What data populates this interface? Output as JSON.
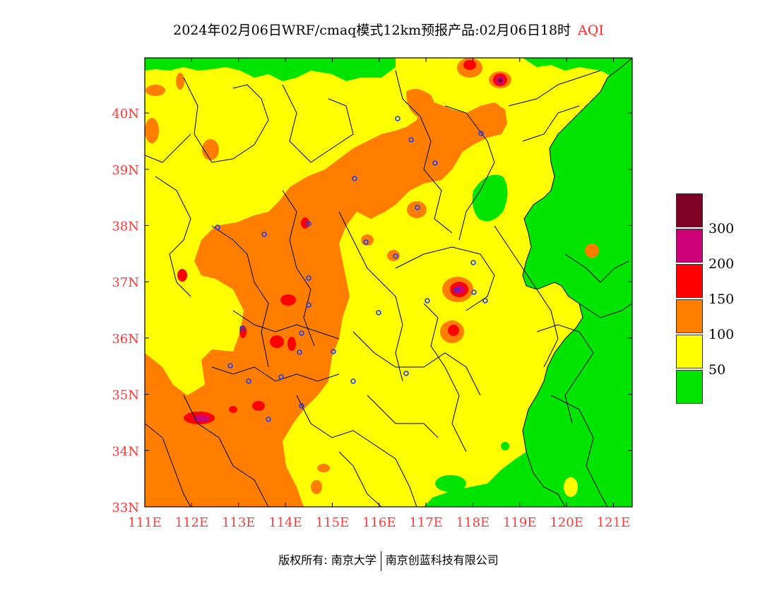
{
  "header": {
    "title": "2024年02月06日WRF/cmaq模式12km预报产品:02月06日18时",
    "variable": "AQI"
  },
  "map": {
    "lon_labels": [
      "111E",
      "112E",
      "113E",
      "114E",
      "115E",
      "116E",
      "117E",
      "118E",
      "119E",
      "120E",
      "121E"
    ],
    "lat_labels": [
      "33N",
      "34N",
      "35N",
      "36N",
      "37N",
      "38N",
      "39N",
      "40N"
    ],
    "lon_range": [
      111,
      121.4
    ],
    "lat_range": [
      33,
      40.98
    ],
    "station_marker": "open blue circle",
    "category_colors": {
      "good": "#00e400",
      "moderate": "#ffff00",
      "usg": "#ff7e00",
      "unhealthy": "#ff0000",
      "very_unhealthy": "#cc0077",
      "hazardous": "#7e0023"
    }
  },
  "legend": {
    "labels": [
      "300",
      "200",
      "150",
      "100",
      "50"
    ],
    "colors": [
      "#7e0023",
      "#cc0077",
      "#ff0000",
      "#ff7e00",
      "#ffff00",
      "#00e400"
    ]
  },
  "footer": {
    "left": "版权所有: 南京大学",
    "right": "南京创蓝科技有限公司"
  }
}
